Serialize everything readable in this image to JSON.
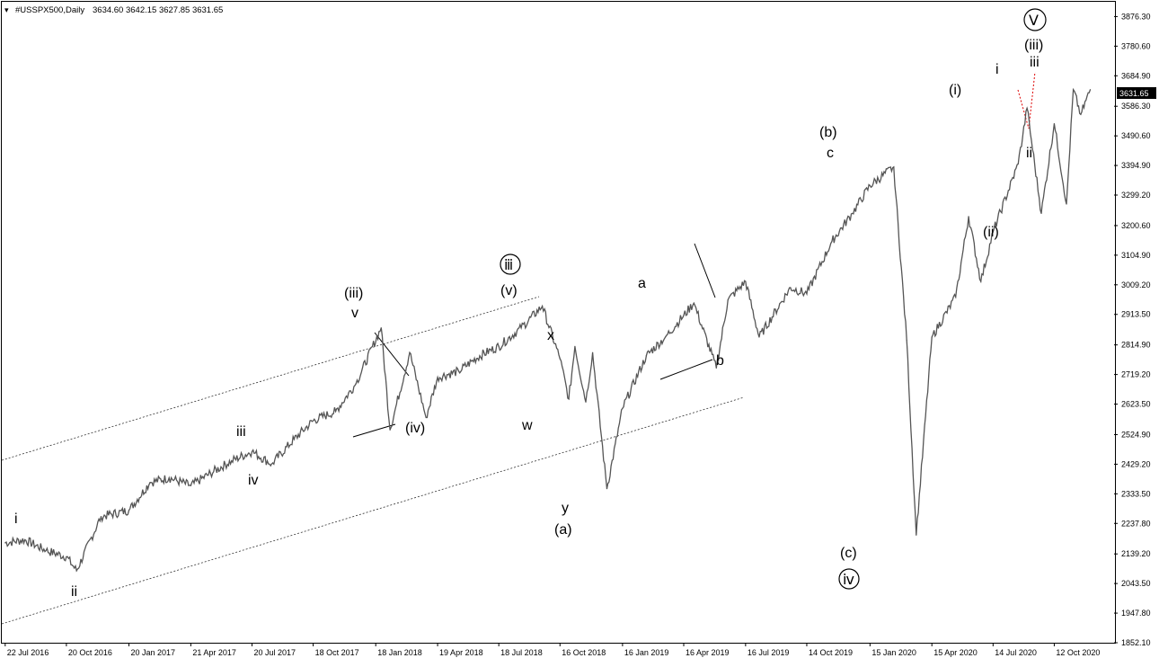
{
  "header": {
    "symbol": "#USSPX500,Daily",
    "ohlc": "3634.60 3642.15 3627.85 3631.65"
  },
  "chart_data": {
    "type": "line",
    "symbol": "#USSPX500",
    "timeframe": "Daily",
    "ylim": [
      1852.1,
      3924.0
    ],
    "y_ticks": [
      "3876.30",
      "3780.60",
      "3684.90",
      "3586.30",
      "3490.60",
      "3394.90",
      "3299.20",
      "3200.60",
      "3104.90",
      "3009.20",
      "2913.50",
      "2814.90",
      "2719.20",
      "2623.50",
      "2524.90",
      "2429.20",
      "2333.50",
      "2237.80",
      "2139.20",
      "2043.50",
      "1947.80",
      "1852.10"
    ],
    "x_ticks": [
      "22 Jul 2016",
      "20 Oct 2016",
      "20 Jan 2017",
      "21 Apr 2017",
      "20 Jul 2017",
      "18 Oct 2017",
      "18 Jan 2018",
      "19 Apr 2018",
      "18 Jul 2018",
      "16 Oct 2018",
      "16 Jan 2019",
      "16 Apr 2019",
      "16 Jul 2019",
      "14 Oct 2019",
      "15 Jan 2020",
      "15 Apr 2020",
      "14 Jul 2020",
      "12 Oct 2020"
    ],
    "current_price": "3631.65",
    "series": [
      {
        "x": [
          "2016-07-22",
          "2016-08-20",
          "2016-09-20",
          "2016-10-20",
          "2016-11-04",
          "2016-12-10",
          "2017-01-20",
          "2017-02-20",
          "2017-03-20",
          "2017-04-21",
          "2017-05-20",
          "2017-06-20",
          "2017-07-20",
          "2017-08-18",
          "2017-09-20",
          "2017-10-18",
          "2017-11-20",
          "2017-12-20",
          "2018-01-26",
          "2018-02-08",
          "2018-03-09",
          "2018-04-02",
          "2018-04-19",
          "2018-05-20",
          "2018-06-20",
          "2018-07-18",
          "2018-08-20",
          "2018-09-20",
          "2018-10-16",
          "2018-10-29",
          "2018-11-07",
          "2018-11-23",
          "2018-12-03",
          "2018-12-24",
          "2019-01-16",
          "2019-02-20",
          "2019-03-20",
          "2019-04-16",
          "2019-05-01",
          "2019-06-03",
          "2019-06-20",
          "2019-07-16",
          "2019-08-05",
          "2019-09-20",
          "2019-10-14",
          "2019-11-20",
          "2019-12-20",
          "2020-01-15",
          "2020-02-19",
          "2020-03-09",
          "2020-03-23",
          "2020-04-15",
          "2020-05-20",
          "2020-06-08",
          "2020-06-26",
          "2020-07-14",
          "2020-08-20",
          "2020-09-02",
          "2020-09-23",
          "2020-10-12",
          "2020-10-30",
          "2020-11-09",
          "2020-11-20",
          "2020-12-04"
        ],
        "values": [
          2175,
          2185,
          2150,
          2130,
          2085,
          2260,
          2280,
          2370,
          2385,
          2360,
          2400,
          2440,
          2470,
          2430,
          2510,
          2570,
          2600,
          2690,
          2870,
          2540,
          2790,
          2580,
          2710,
          2730,
          2780,
          2810,
          2870,
          2940,
          2770,
          2640,
          2810,
          2630,
          2790,
          2350,
          2610,
          2780,
          2840,
          2910,
          2950,
          2740,
          2960,
          3020,
          2840,
          3000,
          2980,
          3150,
          3240,
          3330,
          3390,
          2830,
          2200,
          2840,
          2970,
          3230,
          3020,
          3180,
          3400,
          3580,
          3240,
          3530,
          3270,
          3640,
          3560,
          3640
        ]
      }
    ],
    "wave_labels": [
      "i",
      "ii",
      "iii",
      "iv",
      "v",
      "(iii)",
      "(iv)",
      "(v)",
      "ⅲ",
      "w",
      "x",
      "y",
      "(a)",
      "a",
      "b",
      "(b)",
      "c",
      "(c)",
      "ⅳ",
      "(i)",
      "(ii)",
      "i",
      "ii",
      "(iii)",
      "iii",
      "Ⅴ"
    ]
  }
}
